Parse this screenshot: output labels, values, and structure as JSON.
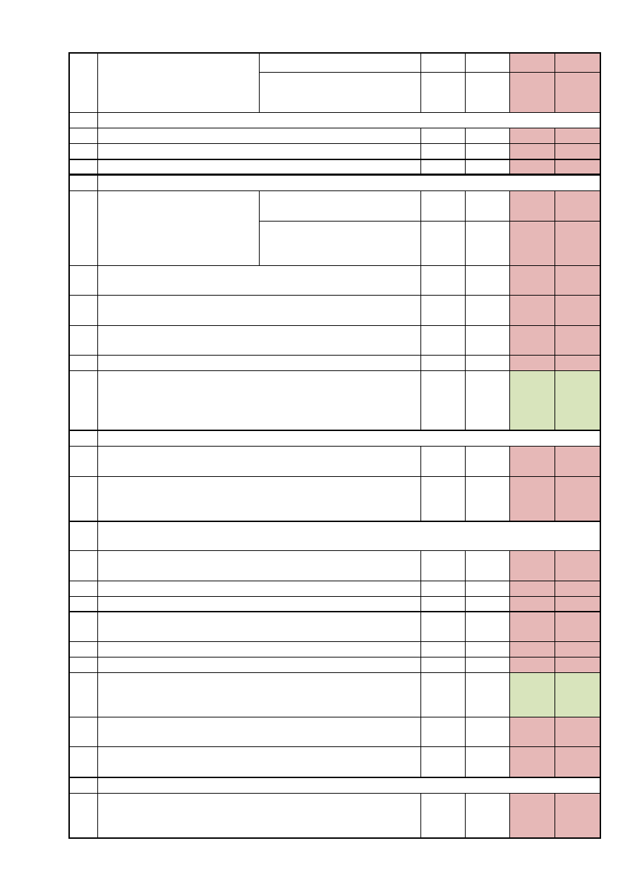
{
  "colors": {
    "red": "#e6b8b7",
    "green": "#d8e4bc",
    "border": "#000000"
  },
  "rows": [
    {
      "kind": "split",
      "status": [
        "red",
        "red"
      ]
    },
    {
      "kind": "section"
    },
    {
      "kind": "item",
      "status": "red"
    },
    {
      "kind": "item",
      "status": "red"
    },
    {
      "kind": "item",
      "status": "red"
    },
    {
      "kind": "section"
    },
    {
      "kind": "split",
      "status": [
        "red",
        "red"
      ]
    },
    {
      "kind": "item",
      "status": "red"
    },
    {
      "kind": "item",
      "status": "red"
    },
    {
      "kind": "item",
      "status": "red"
    },
    {
      "kind": "item",
      "status": "red"
    },
    {
      "kind": "item",
      "status": "green"
    },
    {
      "kind": "section"
    },
    {
      "kind": "item",
      "status": "red"
    },
    {
      "kind": "item",
      "status": "red"
    },
    {
      "kind": "section"
    },
    {
      "kind": "item",
      "status": "red"
    },
    {
      "kind": "item",
      "status": "red"
    },
    {
      "kind": "item",
      "status": "red"
    },
    {
      "kind": "item",
      "status": "red"
    },
    {
      "kind": "item",
      "status": "red"
    },
    {
      "kind": "item",
      "status": "red"
    },
    {
      "kind": "item",
      "status": "green"
    },
    {
      "kind": "item",
      "status": "red"
    },
    {
      "kind": "item",
      "status": "red"
    },
    {
      "kind": "section"
    },
    {
      "kind": "item",
      "status": "red"
    }
  ]
}
